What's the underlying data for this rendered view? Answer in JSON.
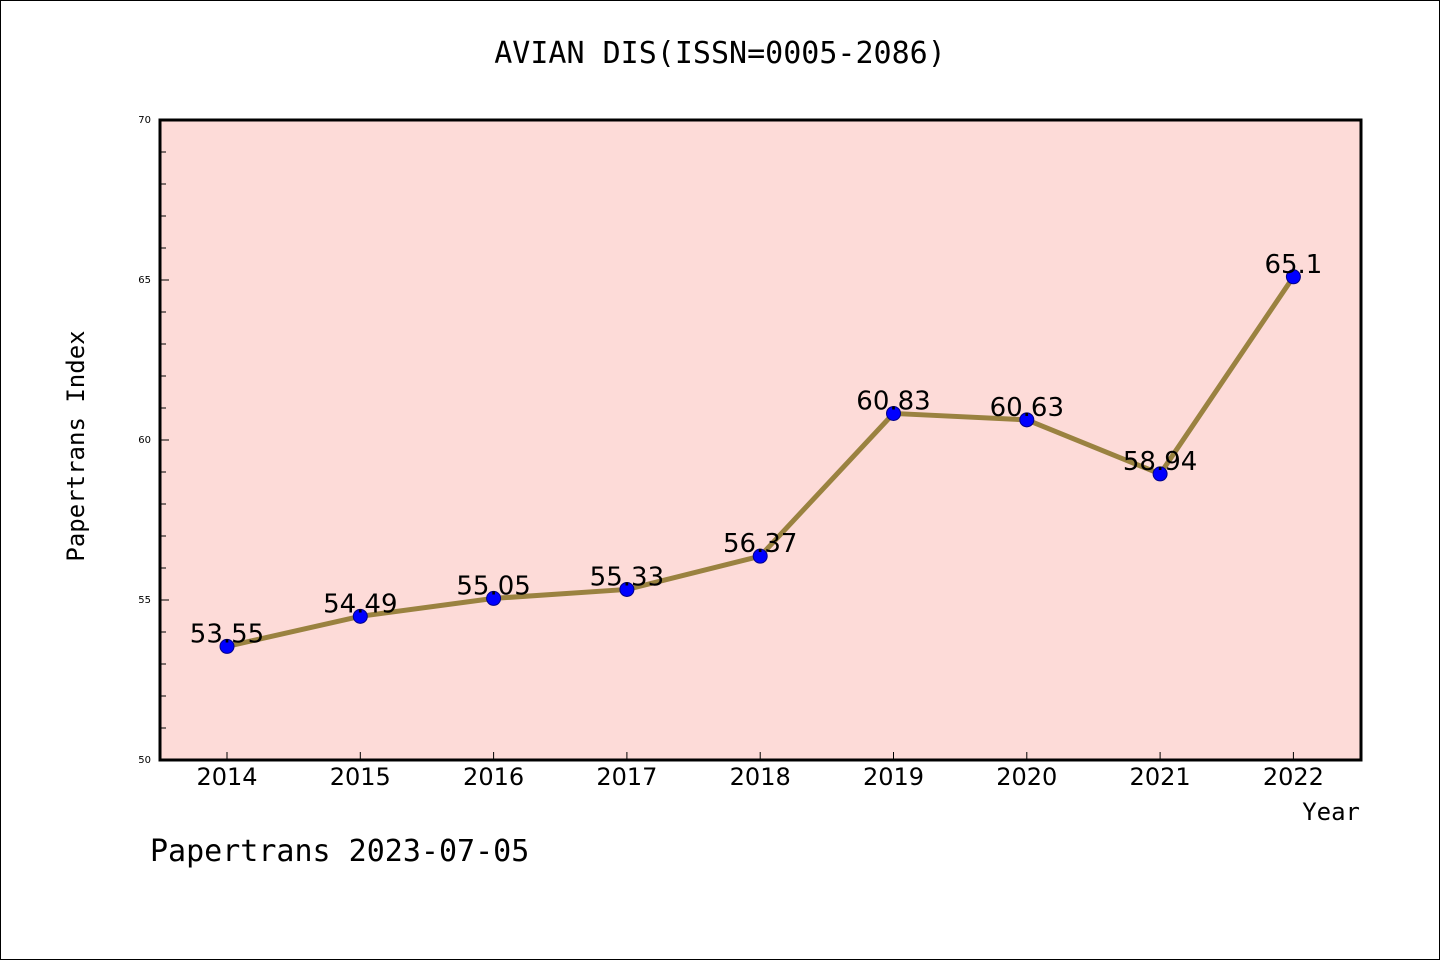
{
  "chart_data": {
    "type": "line",
    "title": "AVIAN DIS(ISSN=0005-2086)",
    "xlabel": "Year",
    "ylabel": "Papertrans Index",
    "x": [
      "2014",
      "2015",
      "2016",
      "2017",
      "2018",
      "2019",
      "2020",
      "2021",
      "2022"
    ],
    "values": [
      53.55,
      54.49,
      55.05,
      55.33,
      56.37,
      60.83,
      60.63,
      58.94,
      65.1
    ],
    "data_labels": [
      "53.55",
      "54.49",
      "55.05",
      "55.33",
      "56.37",
      "60.83",
      "60.63",
      "58.94",
      "65.1"
    ],
    "ylim": [
      50,
      70
    ],
    "y_ticks": [
      "50",
      "55",
      "60",
      "65",
      "70"
    ],
    "y_major_step": 5,
    "y_minor_step": 1,
    "grid": false,
    "line_color": "#9a8240",
    "marker_color": "#0000ff",
    "plot_background": "#fddbd8"
  },
  "footer": "Papertrans 2023-07-05"
}
